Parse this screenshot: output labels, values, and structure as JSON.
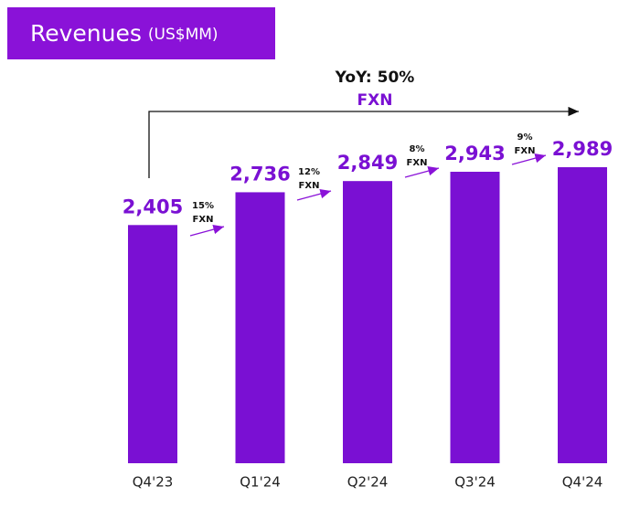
{
  "chart_data": {
    "type": "bar",
    "title": "Revenues",
    "subtitle": "(US$MM)",
    "categories": [
      "Q4'23",
      "Q1'24",
      "Q2'24",
      "Q3'24",
      "Q4'24"
    ],
    "values": [
      2405,
      2736,
      2849,
      2943,
      2989
    ],
    "value_labels": [
      "2,405",
      "2,736",
      "2,849",
      "2,943",
      "2,989"
    ],
    "color": "#7a10d3",
    "overall": {
      "text": "YoY: 50%",
      "basis": "FXN"
    },
    "steps": [
      {
        "growth": "15%",
        "basis": "FXN"
      },
      {
        "growth": "12%",
        "basis": "FXN"
      },
      {
        "growth": "8%",
        "basis": "FXN"
      },
      {
        "growth": "9%",
        "basis": "FXN"
      }
    ]
  }
}
